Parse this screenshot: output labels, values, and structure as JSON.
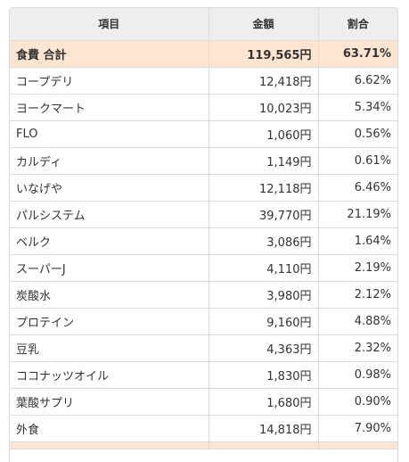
{
  "header": {
    "col_item": "項目",
    "col_amount": "金額",
    "col_ratio": "割合"
  },
  "total": {
    "label": "食費 合計",
    "amount": "119,565円",
    "ratio": "63.71%"
  },
  "rows": [
    {
      "item": "コープデリ",
      "amount": "12,418円",
      "ratio": "6.62%"
    },
    {
      "item": "ヨークマート",
      "amount": "10,023円",
      "ratio": "5.34%"
    },
    {
      "item": "FLO",
      "amount": "1,060円",
      "ratio": "0.56%"
    },
    {
      "item": "カルディ",
      "amount": "1,149円",
      "ratio": "0.61%"
    },
    {
      "item": "いなげや",
      "amount": "12,118円",
      "ratio": "6.46%"
    },
    {
      "item": "パルシステム",
      "amount": "39,770円",
      "ratio": "21.19%"
    },
    {
      "item": "ベルク",
      "amount": "3,086円",
      "ratio": "1.64%"
    },
    {
      "item": "スーパーJ",
      "amount": "4,110円",
      "ratio": "2.19%"
    },
    {
      "item": "炭酸水",
      "amount": "3,980円",
      "ratio": "2.12%"
    },
    {
      "item": "プロテイン",
      "amount": "9,160円",
      "ratio": "4.88%"
    },
    {
      "item": "豆乳",
      "amount": "4,363円",
      "ratio": "2.32%"
    },
    {
      "item": "ココナッツオイル",
      "amount": "1,830円",
      "ratio": "0.98%"
    },
    {
      "item": "葉酸サプリ",
      "amount": "1,680円",
      "ratio": "0.90%"
    },
    {
      "item": "外食",
      "amount": "14,818円",
      "ratio": "7.90%"
    }
  ],
  "colors": {
    "header_bg": "#eeeeee",
    "total_bg": "#fde5d2",
    "border": "#dcdcdc"
  }
}
